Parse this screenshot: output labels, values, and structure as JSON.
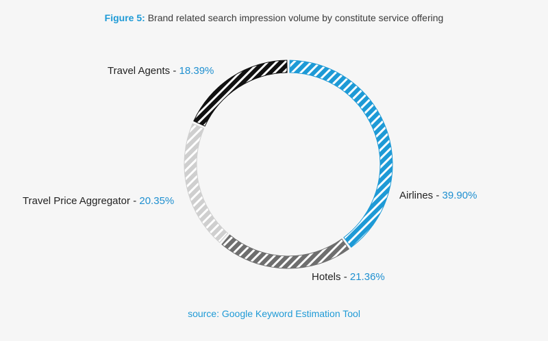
{
  "figure": {
    "number_label": "Figure 5:",
    "title": "Brand related search impression volume by constitute service offering"
  },
  "colors": {
    "accent": "#1e9ad6",
    "airlines": "#1e9ad6",
    "hotels": "#6e6e6e",
    "aggregator": "#cfcfcf",
    "agents": "#111111"
  },
  "chart_data": {
    "type": "pie",
    "variant": "donut",
    "title": "Brand related search impression volume by constitute service offering",
    "series": [
      {
        "name": "Airlines",
        "value": 39.9,
        "display": "39.90%",
        "color": "#1e9ad6"
      },
      {
        "name": "Hotels",
        "value": 21.36,
        "display": "21.36%",
        "color": "#6e6e6e"
      },
      {
        "name": "Travel Price Aggregator",
        "value": 20.35,
        "display": "20.35%",
        "color": "#cfcfcf"
      },
      {
        "name": "Travel Agents",
        "value": 18.39,
        "display": "18.39%",
        "color": "#111111"
      }
    ],
    "pattern": "diagonal-stripes",
    "start": "top",
    "direction": "clockwise"
  },
  "source": "source: Google Keyword Estimation Tool"
}
